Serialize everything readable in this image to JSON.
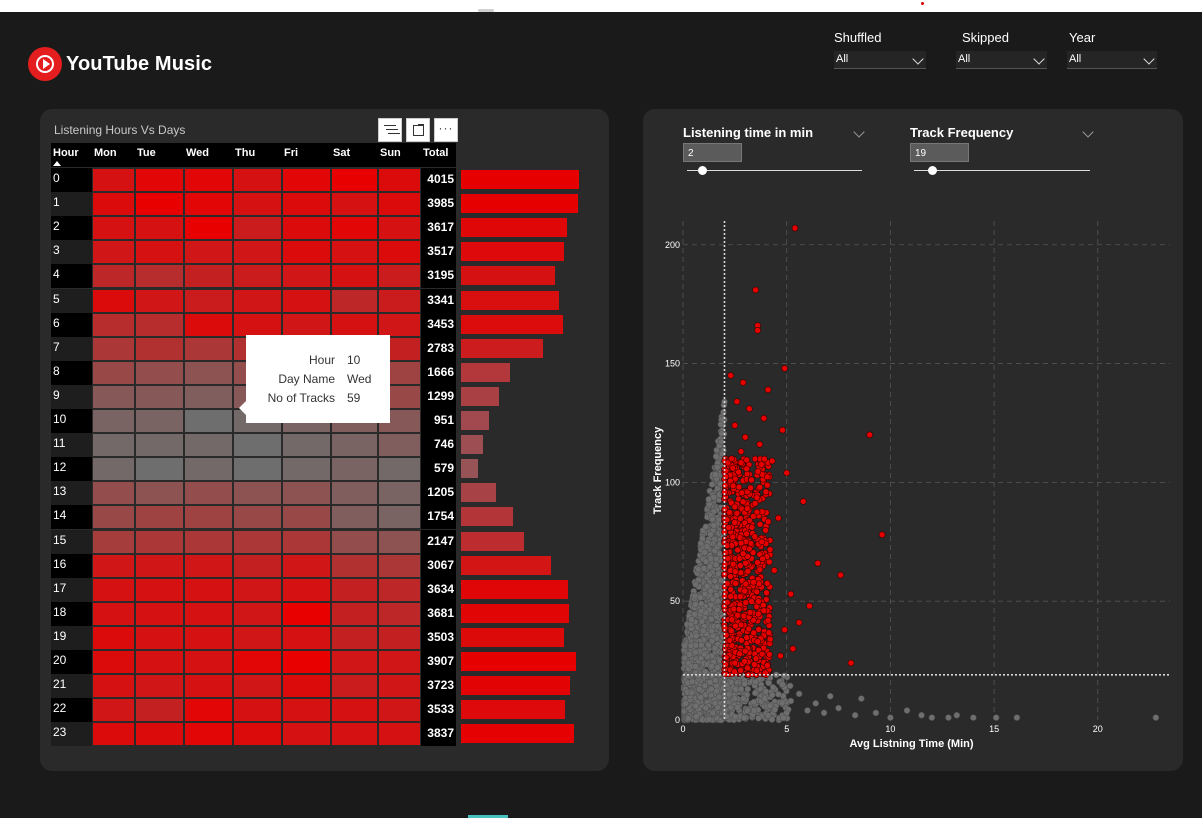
{
  "app": {
    "name": "YouTube Music"
  },
  "filters": [
    {
      "label": "Shuffled",
      "value": "All"
    },
    {
      "label": "Skipped",
      "value": "All"
    },
    {
      "label": "Year",
      "value": "All"
    }
  ],
  "heatmap_card": {
    "title": "Listening Hours Vs Days",
    "toolbar": {
      "more_label": "···"
    },
    "columns": [
      "Hour",
      "Mon",
      "Tue",
      "Wed",
      "Thu",
      "Fri",
      "Sat",
      "Sun",
      "Total"
    ],
    "rows": [
      {
        "hour": "0",
        "total": "4015",
        "cells": [
          0.85,
          0.95,
          0.95,
          0.85,
          0.95,
          1.0,
          0.9
        ]
      },
      {
        "hour": "1",
        "total": "3985",
        "cells": [
          0.9,
          1.0,
          0.95,
          0.85,
          0.9,
          0.85,
          0.9
        ]
      },
      {
        "hour": "2",
        "total": "3617",
        "cells": [
          0.85,
          0.85,
          1.0,
          0.75,
          0.9,
          0.95,
          0.85
        ]
      },
      {
        "hour": "3",
        "total": "3517",
        "cells": [
          0.8,
          0.85,
          0.8,
          0.8,
          0.9,
          0.85,
          0.9
        ]
      },
      {
        "hour": "4",
        "total": "3195",
        "cells": [
          0.65,
          0.6,
          0.7,
          0.75,
          0.8,
          0.85,
          0.75
        ]
      },
      {
        "hour": "5",
        "total": "3341",
        "cells": [
          0.9,
          0.8,
          0.75,
          0.8,
          0.85,
          0.65,
          0.75
        ]
      },
      {
        "hour": "6",
        "total": "3453",
        "cells": [
          0.6,
          0.6,
          0.9,
          0.85,
          0.8,
          0.85,
          0.8
        ]
      },
      {
        "hour": "7",
        "total": "2783",
        "cells": [
          0.5,
          0.55,
          0.5,
          0.55,
          0.7,
          0.7,
          0.7
        ]
      },
      {
        "hour": "8",
        "total": "1666",
        "cells": [
          0.35,
          0.3,
          0.25,
          0.3,
          0.3,
          0.4,
          0.4
        ]
      },
      {
        "hour": "9",
        "total": "1299",
        "cells": [
          0.2,
          0.2,
          0.15,
          0.2,
          0.2,
          0.3,
          0.35
        ]
      },
      {
        "hour": "10",
        "total": "951",
        "cells": [
          0.1,
          0.1,
          0.0,
          0.05,
          0.1,
          0.15,
          0.2
        ]
      },
      {
        "hour": "11",
        "total": "746",
        "cells": [
          0.05,
          0.05,
          0.05,
          0.0,
          0.05,
          0.1,
          0.15
        ]
      },
      {
        "hour": "12",
        "total": "579",
        "cells": [
          0.05,
          0.0,
          0.05,
          0.0,
          0.05,
          0.1,
          0.05
        ]
      },
      {
        "hour": "13",
        "total": "1205",
        "cells": [
          0.3,
          0.25,
          0.3,
          0.25,
          0.25,
          0.15,
          0.1
        ]
      },
      {
        "hour": "14",
        "total": "1754",
        "cells": [
          0.35,
          0.4,
          0.4,
          0.35,
          0.35,
          0.15,
          0.1
        ]
      },
      {
        "hour": "15",
        "total": "2147",
        "cells": [
          0.45,
          0.5,
          0.5,
          0.5,
          0.5,
          0.3,
          0.25
        ]
      },
      {
        "hour": "16",
        "total": "3067",
        "cells": [
          0.8,
          0.8,
          0.8,
          0.7,
          0.8,
          0.55,
          0.5
        ]
      },
      {
        "hour": "17",
        "total": "3634",
        "cells": [
          0.85,
          0.85,
          0.85,
          0.8,
          0.85,
          0.7,
          0.65
        ]
      },
      {
        "hour": "18",
        "total": "3681",
        "cells": [
          0.85,
          0.85,
          0.85,
          0.8,
          1.0,
          0.7,
          0.65
        ]
      },
      {
        "hour": "19",
        "total": "3503",
        "cells": [
          0.9,
          0.85,
          0.85,
          0.8,
          0.85,
          0.7,
          0.7
        ]
      },
      {
        "hour": "20",
        "total": "3907",
        "cells": [
          0.9,
          0.85,
          0.85,
          0.95,
          1.0,
          0.8,
          0.8
        ]
      },
      {
        "hour": "21",
        "total": "3723",
        "cells": [
          0.85,
          0.8,
          0.85,
          0.8,
          0.9,
          0.75,
          0.8
        ]
      },
      {
        "hour": "22",
        "total": "3533",
        "cells": [
          0.8,
          0.7,
          0.95,
          0.85,
          0.85,
          0.85,
          0.8
        ]
      },
      {
        "hour": "23",
        "total": "3837",
        "cells": [
          0.9,
          0.9,
          0.95,
          0.9,
          0.85,
          0.85,
          0.85
        ]
      }
    ],
    "tooltip": [
      {
        "key": "Hour",
        "value": "10"
      },
      {
        "key": "Day Name",
        "value": "Wed"
      },
      {
        "key": "No of Tracks",
        "value": "59"
      }
    ]
  },
  "scatter_card": {
    "sliders": [
      {
        "label": "Listening time in min",
        "value": "2"
      },
      {
        "label": "Track Frequency",
        "value": "19"
      }
    ]
  },
  "chart_data": {
    "type": "scatter",
    "xlabel": "Avg Listning Time (Min)",
    "ylabel": "Track Frequency",
    "xlim": [
      0,
      23
    ],
    "ylim": [
      0,
      210
    ],
    "x_ticks": [
      0,
      5,
      10,
      15,
      20
    ],
    "y_ticks": [
      0,
      50,
      100,
      150,
      200
    ],
    "reference_lines": {
      "x": 2,
      "y": 19
    },
    "colors": {
      "highlight": "#e60000",
      "base": "#6e6e6e"
    },
    "highlight_points": [
      [
        5.4,
        207
      ],
      [
        3.5,
        181
      ],
      [
        3.6,
        166
      ],
      [
        3.6,
        164
      ],
      [
        9.0,
        120
      ],
      [
        9.6,
        78
      ],
      [
        4.9,
        148
      ],
      [
        2.3,
        145
      ],
      [
        2.9,
        142
      ],
      [
        4.1,
        139
      ],
      [
        2.6,
        134
      ],
      [
        3.2,
        131
      ],
      [
        3.9,
        127
      ],
      [
        2.5,
        124
      ],
      [
        4.8,
        122
      ],
      [
        3.0,
        119
      ],
      [
        3.7,
        116
      ],
      [
        2.8,
        113
      ],
      [
        4.3,
        109
      ],
      [
        2.4,
        106
      ],
      [
        5.0,
        104
      ],
      [
        3.3,
        101
      ],
      [
        2.7,
        98
      ],
      [
        4.0,
        96
      ],
      [
        5.8,
        92
      ],
      [
        3.1,
        89
      ],
      [
        2.6,
        87
      ],
      [
        4.6,
        85
      ],
      [
        6.5,
        66
      ],
      [
        7.6,
        61
      ],
      [
        8.1,
        24
      ],
      [
        5.2,
        53
      ],
      [
        6.1,
        48
      ],
      [
        5.6,
        41
      ],
      [
        4.9,
        38
      ],
      [
        3.8,
        75
      ],
      [
        2.9,
        70
      ],
      [
        4.4,
        63
      ],
      [
        3.4,
        58
      ],
      [
        2.3,
        52
      ],
      [
        3.9,
        46
      ],
      [
        2.8,
        40
      ],
      [
        4.2,
        34
      ],
      [
        3.0,
        29
      ],
      [
        2.5,
        24
      ],
      [
        4.7,
        27
      ],
      [
        3.6,
        33
      ],
      [
        5.3,
        30
      ],
      [
        2.2,
        81
      ],
      [
        3.2,
        72
      ]
    ],
    "highlight_cloud": {
      "x_min": 2.0,
      "x_max": 4.2,
      "y_min": 19,
      "y_max": 110,
      "count": 700
    },
    "base_cloud": {
      "x_min": 0.05,
      "x_max": 2.0,
      "y_min": 0,
      "y_max": 135,
      "count": 1400
    },
    "base_floor_points": [
      [
        5.2,
        8
      ],
      [
        6.0,
        4
      ],
      [
        6.8,
        3
      ],
      [
        7.5,
        5
      ],
      [
        8.3,
        2
      ],
      [
        8.6,
        9
      ],
      [
        9.3,
        3
      ],
      [
        10.0,
        1
      ],
      [
        10.8,
        4
      ],
      [
        11.5,
        2
      ],
      [
        12.0,
        1
      ],
      [
        12.8,
        1
      ],
      [
        13.2,
        2
      ],
      [
        14.0,
        1
      ],
      [
        15.1,
        1
      ],
      [
        16.1,
        1
      ],
      [
        22.8,
        1
      ],
      [
        4.8,
        15
      ],
      [
        5.6,
        11
      ],
      [
        4.5,
        19
      ],
      [
        6.4,
        7
      ],
      [
        7.1,
        10
      ],
      [
        3.5,
        16
      ],
      [
        2.8,
        13
      ],
      [
        4.2,
        6
      ],
      [
        5.0,
        3
      ],
      [
        3.1,
        4
      ],
      [
        2.5,
        9
      ],
      [
        4.0,
        12
      ]
    ]
  }
}
